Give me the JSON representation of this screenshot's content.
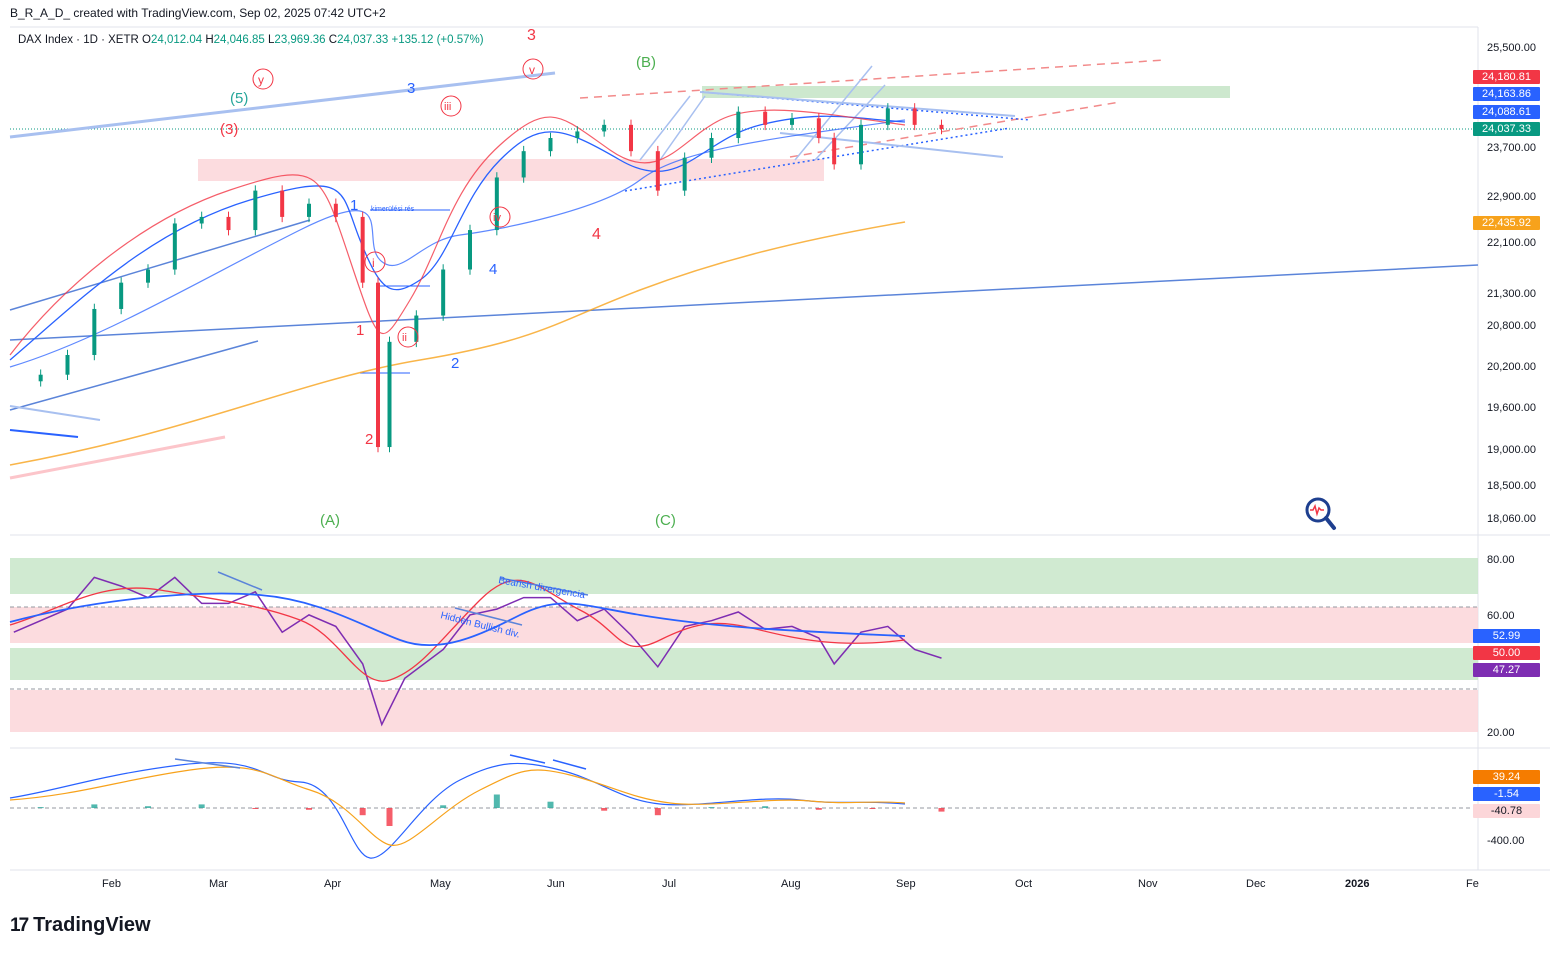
{
  "header": {
    "author": "B_R_A_D_",
    "created_text": "created with TradingView.com, Sep 02, 2025 07:42 UTC+2"
  },
  "symbol": {
    "name": "DAX Index · 1D · XETR",
    "open_label": "O",
    "open": "24,012.04",
    "high_label": "H",
    "high": "24,046.85",
    "low_label": "L",
    "low": "23,969.36",
    "close_label": "C",
    "close": "24,037.33",
    "change": "+135.12 (+0.57%)"
  },
  "brand": {
    "name": "TradingView",
    "logo_glyph": "17"
  },
  "colors": {
    "up": "#089981",
    "down": "#f23645",
    "ma_blue": "#2962ff",
    "ma_orange": "#f7a21b",
    "rsi_purple": "#7e2db2",
    "green_zone": "#c8e6c9",
    "red_zone": "#fcd6d9",
    "trend_blue": "#5b84d9",
    "dash_red": "#f28a8a"
  },
  "chart_data": [
    {
      "type": "line",
      "panel": "price",
      "title": "",
      "y_ticks": [
        "25,500.00",
        "23,700.00",
        "22,900.00",
        "22,100.00",
        "21,300.00",
        "20,800.00",
        "20,200.00",
        "19,600.00",
        "19,000.00",
        "18,500.00",
        "18,060.00"
      ],
      "x_ticks": [
        "Feb",
        "Mar",
        "Apr",
        "May",
        "Jun",
        "Jul",
        "Aug",
        "Sep",
        "Oct",
        "Nov",
        "Dec",
        "2026",
        "Fe"
      ],
      "price_labels": [
        {
          "value": "24,180.81",
          "color": "#f23645"
        },
        {
          "value": "24,163.86",
          "color": "#2962ff"
        },
        {
          "value": "24,088.61",
          "color": "#2962ff"
        },
        {
          "value": "24,037.33",
          "color": "#089981"
        },
        {
          "value": "22,435.92",
          "color": "#f7a21b"
        }
      ],
      "close_series": [
        {
          "x": "2025-01-02",
          "y": 20200
        },
        {
          "x": "2025-01-09",
          "y": 20300
        },
        {
          "x": "2025-01-16",
          "y": 20600
        },
        {
          "x": "2025-01-23",
          "y": 21300
        },
        {
          "x": "2025-01-30",
          "y": 21700
        },
        {
          "x": "2025-02-06",
          "y": 21900
        },
        {
          "x": "2025-02-13",
          "y": 22600
        },
        {
          "x": "2025-02-20",
          "y": 22700
        },
        {
          "x": "2025-02-27",
          "y": 22500
        },
        {
          "x": "2025-03-06",
          "y": 23100
        },
        {
          "x": "2025-03-13",
          "y": 22700
        },
        {
          "x": "2025-03-20",
          "y": 22900
        },
        {
          "x": "2025-03-27",
          "y": 22700
        },
        {
          "x": "2025-04-03",
          "y": 21700
        },
        {
          "x": "2025-04-07",
          "y": 19200
        },
        {
          "x": "2025-04-10",
          "y": 20800
        },
        {
          "x": "2025-04-17",
          "y": 21200
        },
        {
          "x": "2025-04-24",
          "y": 21900
        },
        {
          "x": "2025-05-01",
          "y": 22500
        },
        {
          "x": "2025-05-08",
          "y": 23300
        },
        {
          "x": "2025-05-15",
          "y": 23700
        },
        {
          "x": "2025-05-22",
          "y": 23900
        },
        {
          "x": "2025-05-29",
          "y": 24000
        },
        {
          "x": "2025-06-05",
          "y": 24100
        },
        {
          "x": "2025-06-12",
          "y": 23700
        },
        {
          "x": "2025-06-19",
          "y": 23100
        },
        {
          "x": "2025-06-26",
          "y": 23600
        },
        {
          "x": "2025-07-03",
          "y": 23900
        },
        {
          "x": "2025-07-10",
          "y": 24300
        },
        {
          "x": "2025-07-17",
          "y": 24100
        },
        {
          "x": "2025-07-24",
          "y": 24200
        },
        {
          "x": "2025-07-31",
          "y": 23900
        },
        {
          "x": "2025-08-04",
          "y": 23500
        },
        {
          "x": "2025-08-11",
          "y": 24100
        },
        {
          "x": "2025-08-18",
          "y": 24350
        },
        {
          "x": "2025-08-25",
          "y": 24100
        },
        {
          "x": "2025-09-01",
          "y": 24037
        }
      ],
      "annotations": [
        "(5)",
        "(3)",
        "3",
        "3",
        "(B)",
        "y",
        "v",
        "iii",
        "1",
        "i",
        "iv",
        "4",
        "4",
        "1",
        "ii",
        "2",
        "2",
        "(A)",
        "(C)",
        "kimerülési rés"
      ]
    },
    {
      "type": "line",
      "panel": "rsi",
      "y_ticks": [
        "80.00",
        "60.00",
        "20.00"
      ],
      "value_labels": [
        {
          "value": "52.99",
          "color": "#2962ff"
        },
        {
          "value": "50.00",
          "color": "#f23645"
        },
        {
          "value": "47.27",
          "color": "#7e2db2"
        }
      ],
      "annotations": [
        "Bearish divergencia",
        "Hidden Bullish div."
      ],
      "series": [
        {
          "name": "RSI",
          "values": [
            {
              "x": "2025-01-02",
              "y": 56
            },
            {
              "x": "2025-01-16",
              "y": 64
            },
            {
              "x": "2025-01-23",
              "y": 75
            },
            {
              "x": "2025-01-30",
              "y": 72
            },
            {
              "x": "2025-02-06",
              "y": 68
            },
            {
              "x": "2025-02-13",
              "y": 75
            },
            {
              "x": "2025-02-20",
              "y": 66
            },
            {
              "x": "2025-02-27",
              "y": 66
            },
            {
              "x": "2025-03-06",
              "y": 70
            },
            {
              "x": "2025-03-13",
              "y": 56
            },
            {
              "x": "2025-03-20",
              "y": 62
            },
            {
              "x": "2025-03-27",
              "y": 58
            },
            {
              "x": "2025-04-03",
              "y": 45
            },
            {
              "x": "2025-04-08",
              "y": 24
            },
            {
              "x": "2025-04-14",
              "y": 40
            },
            {
              "x": "2025-04-24",
              "y": 50
            },
            {
              "x": "2025-05-01",
              "y": 62
            },
            {
              "x": "2025-05-08",
              "y": 64
            },
            {
              "x": "2025-05-15",
              "y": 68
            },
            {
              "x": "2025-05-22",
              "y": 68
            },
            {
              "x": "2025-05-29",
              "y": 60
            },
            {
              "x": "2025-06-05",
              "y": 64
            },
            {
              "x": "2025-06-12",
              "y": 55
            },
            {
              "x": "2025-06-19",
              "y": 44
            },
            {
              "x": "2025-06-26",
              "y": 58
            },
            {
              "x": "2025-07-03",
              "y": 60
            },
            {
              "x": "2025-07-10",
              "y": 63
            },
            {
              "x": "2025-07-17",
              "y": 57
            },
            {
              "x": "2025-07-24",
              "y": 58
            },
            {
              "x": "2025-07-31",
              "y": 54
            },
            {
              "x": "2025-08-04",
              "y": 45
            },
            {
              "x": "2025-08-11",
              "y": 56
            },
            {
              "x": "2025-08-18",
              "y": 58
            },
            {
              "x": "2025-08-25",
              "y": 50
            },
            {
              "x": "2025-09-01",
              "y": 47
            }
          ]
        }
      ]
    },
    {
      "type": "bar",
      "panel": "macd",
      "y_ticks": [
        "-400.00"
      ],
      "value_labels": [
        {
          "value": "39.24",
          "color": "#f7a21b"
        },
        {
          "value": "-1.54",
          "color": "#2962ff"
        },
        {
          "value": "-40.78",
          "color": "#fcd6d9"
        }
      ],
      "histogram": [
        {
          "x": "2025-01-09",
          "y": 10
        },
        {
          "x": "2025-01-23",
          "y": 40
        },
        {
          "x": "2025-02-06",
          "y": 20
        },
        {
          "x": "2025-02-20",
          "y": 40
        },
        {
          "x": "2025-03-06",
          "y": -10
        },
        {
          "x": "2025-03-20",
          "y": -20
        },
        {
          "x": "2025-04-03",
          "y": -80
        },
        {
          "x": "2025-04-10",
          "y": -200
        },
        {
          "x": "2025-04-24",
          "y": 30
        },
        {
          "x": "2025-05-08",
          "y": 150
        },
        {
          "x": "2025-05-22",
          "y": 70
        },
        {
          "x": "2025-06-05",
          "y": -30
        },
        {
          "x": "2025-06-19",
          "y": -80
        },
        {
          "x": "2025-07-03",
          "y": 10
        },
        {
          "x": "2025-07-17",
          "y": 20
        },
        {
          "x": "2025-07-31",
          "y": -20
        },
        {
          "x": "2025-08-14",
          "y": -10
        },
        {
          "x": "2025-09-01",
          "y": -40
        }
      ]
    }
  ]
}
